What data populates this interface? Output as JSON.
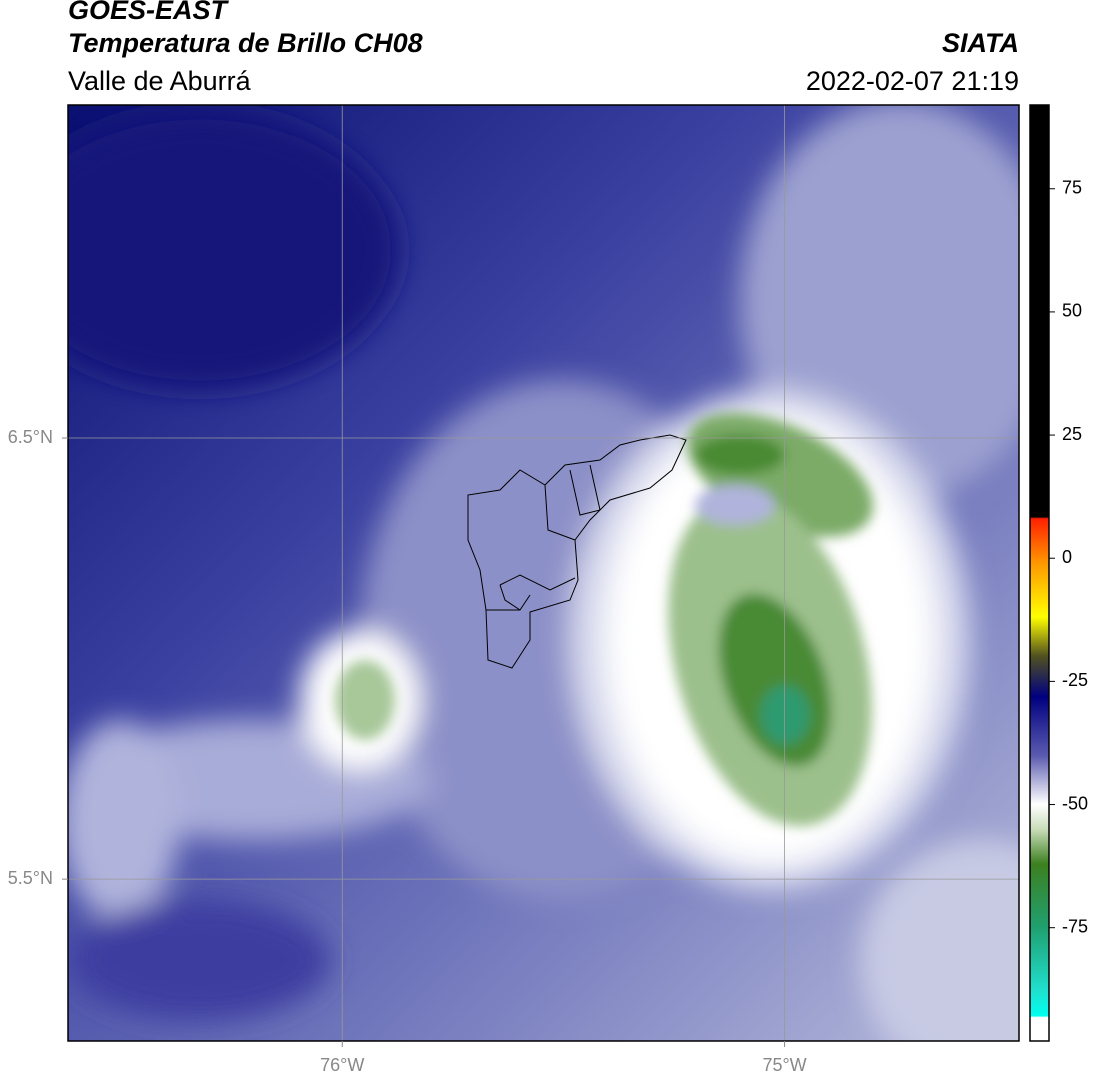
{
  "header": {
    "title": "GOES-EAST",
    "subtitle": "Temperatura de Brillo CH08",
    "region": "Valle de Aburrá",
    "source": "SIATA",
    "datetime": "2022-02-07 21:19"
  },
  "map": {
    "xlim": [
      -76.62,
      -74.47
    ],
    "ylim": [
      5.133,
      7.255
    ],
    "xticks": [
      {
        "value": -76,
        "label": "76°W"
      },
      {
        "value": -75,
        "label": "75°W"
      }
    ],
    "yticks": [
      {
        "value": 6.5,
        "label": "6.5°N"
      },
      {
        "value": 5.5,
        "label": "5.5°N"
      }
    ],
    "grid": true
  },
  "colorbar": {
    "lim": [
      -98,
      92
    ],
    "ticks": [
      75,
      50,
      25,
      0,
      -25,
      -50,
      -75
    ]
  }
}
